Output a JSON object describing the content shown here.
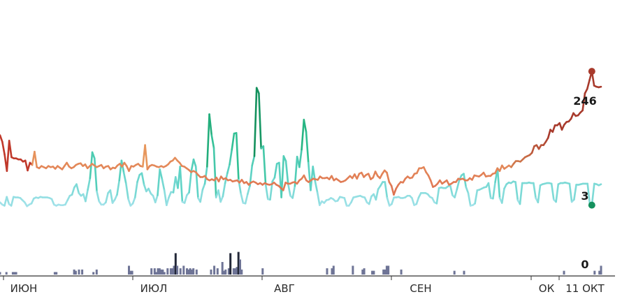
{
  "chart_data": {
    "type": "line",
    "x_tick_labels": [
      "ИЮН",
      "ИЮЛ",
      "АВГ",
      "СЕН",
      "ОК",
      "11 ОКТ"
    ],
    "y_main_range": [
      0,
      340
    ],
    "y_bar_range": [
      0,
      30
    ],
    "series": [
      {
        "colors": [
          "#a6e3ec",
          "#5fd3c6",
          "#2bbd8c",
          "#14915d"
        ],
        "values": [
          8,
          4,
          2,
          18,
          5,
          2,
          18,
          17,
          17,
          16,
          12,
          8,
          1,
          4,
          6,
          15,
          17,
          16,
          18,
          17,
          17,
          17,
          16,
          14,
          4,
          2,
          4,
          3,
          3,
          4,
          12,
          20,
          22,
          35,
          41,
          25,
          20,
          23,
          10,
          31,
          52,
          99,
          88,
          28,
          10,
          4,
          4,
          8,
          25,
          30,
          7,
          13,
          22,
          48,
          84,
          62,
          42,
          14,
          2,
          6,
          17,
          45,
          58,
          61,
          40,
          28,
          33,
          24,
          20,
          8,
          21,
          68,
          50,
          30,
          3,
          17,
          27,
          26,
          54,
          34,
          73,
          9,
          7,
          21,
          26,
          65,
          86,
          73,
          16,
          9,
          31,
          42,
          73,
          168,
          130,
          107,
          17,
          30,
          9,
          19,
          43,
          61,
          77,
          104,
          133,
          134,
          49,
          24,
          7,
          6,
          23,
          38,
          75,
          92,
          216,
          206,
          106,
          110,
          41,
          14,
          13,
          46,
          53,
          78,
          80,
          17,
          92,
          83,
          41,
          20,
          16,
          38,
          91,
          72,
          104,
          158,
          136,
          80,
          30,
          73,
          46,
          26,
          3,
          10,
          7,
          12,
          13,
          16,
          14,
          10,
          11,
          18,
          17,
          16,
          2,
          2,
          8,
          17,
          18,
          19,
          20,
          18,
          17,
          8,
          5,
          19,
          23,
          13,
          32,
          38,
          45,
          45,
          16,
          2,
          5,
          17,
          17,
          18,
          16,
          16,
          17,
          20,
          20,
          16,
          3,
          5,
          17,
          25,
          25,
          25,
          23,
          18,
          16,
          8,
          6,
          34,
          35,
          34,
          34,
          37,
          39,
          21,
          17,
          32,
          48,
          57,
          60,
          36,
          25,
          2,
          3,
          6,
          30,
          31,
          33,
          35,
          36,
          43,
          16,
          15,
          45,
          70,
          16,
          7,
          33,
          41,
          44,
          43,
          46,
          45,
          12,
          5,
          43,
          43,
          43,
          44,
          43,
          43,
          16,
          8,
          39,
          41,
          42,
          43,
          43,
          42,
          13,
          9,
          41,
          43,
          43,
          44,
          43,
          42,
          9,
          13,
          40,
          40,
          41,
          42,
          42,
          42,
          5,
          6,
          42,
          41,
          39,
          41
        ]
      },
      {
        "colors": [
          "#c0392b",
          "#e07a55",
          "#e89d5f",
          "#a83a2c"
        ],
        "values": [
          130,
          118,
          95,
          65,
          120,
          90,
          88,
          88,
          86,
          86,
          82,
          84,
          66,
          80,
          76,
          100,
          72,
          70,
          74,
          72,
          70,
          74,
          72,
          73,
          69,
          74,
          71,
          68,
          74,
          80,
          73,
          70,
          72,
          76,
          78,
          79,
          74,
          77,
          70,
          74,
          78,
          75,
          72,
          74,
          76,
          70,
          73,
          74,
          68,
          71,
          70,
          75,
          78,
          73,
          80,
          74,
          65,
          74,
          73,
          76,
          78,
          74,
          73,
          112,
          68,
          74,
          76,
          75,
          73,
          72,
          74,
          72,
          74,
          77,
          82,
          84,
          89,
          84,
          80,
          74,
          73,
          70,
          67,
          63,
          65,
          63,
          58,
          54,
          54,
          56,
          50,
          48,
          50,
          48,
          53,
          46,
          55,
          50,
          52,
          48,
          49,
          46,
          47,
          48,
          44,
          49,
          43,
          45,
          40,
          44,
          46,
          44,
          41,
          43,
          40,
          43,
          41,
          40,
          41,
          44,
          40,
          38,
          34,
          30,
          44,
          42,
          42,
          44,
          45,
          42,
          48,
          51,
          57,
          48,
          45,
          48,
          51,
          50,
          49,
          55,
          52,
          52,
          53,
          50,
          56,
          48,
          51,
          48,
          45,
          46,
          48,
          52,
          56,
          52,
          59,
          51,
          60,
          62,
          54,
          58,
          60,
          50,
          53,
          64,
          56,
          52,
          60,
          66,
          62,
          45,
          38,
          22,
          33,
          40,
          45,
          44,
          51,
          55,
          52,
          53,
          60,
          61,
          70,
          70,
          72,
          63,
          57,
          48,
          36,
          38,
          42,
          48,
          42,
          45,
          48,
          40,
          42,
          45,
          45,
          51,
          50,
          51,
          48,
          48,
          52,
          49,
          57,
          56,
          55,
          58,
          62,
          55,
          56,
          56,
          60,
          61,
          70,
          65,
          75,
          69,
          72,
          75,
          72,
          78,
          83,
          83,
          82,
          86,
          90,
          92,
          94,
          98,
          110,
          112,
          105,
          112,
          112,
          118,
          125,
          140,
          136,
          148,
          148,
          152,
          140,
          149,
          154,
          155,
          160,
          170,
          165,
          166,
          171,
          175,
          206,
          214,
          230,
          246,
          220,
          218,
          217,
          218
        ]
      }
    ],
    "bars": {
      "values": [
        2,
        0,
        0,
        0,
        2,
        0,
        0,
        0,
        2,
        2,
        2,
        0,
        0,
        0,
        0,
        0,
        0,
        0,
        0,
        0,
        0,
        0,
        0,
        0,
        0,
        0,
        0,
        0,
        0,
        0,
        0,
        0,
        0,
        0,
        2,
        2,
        0,
        0,
        0,
        0,
        0,
        0,
        0,
        0,
        0,
        0,
        4,
        3,
        0,
        4,
        0,
        4,
        0,
        0,
        0,
        0,
        0,
        0,
        2,
        0,
        4,
        0,
        0,
        0,
        0,
        0,
        0,
        0,
        0,
        0,
        0,
        0,
        0,
        0,
        0,
        0,
        0,
        0,
        0,
        0,
        7,
        3,
        3,
        0,
        0,
        0,
        0,
        0,
        0,
        0,
        0,
        0,
        0,
        0,
        5,
        0,
        5,
        2,
        5,
        5,
        4,
        4,
        2,
        0,
        5,
        0,
        5,
        5,
        7,
        17,
        7,
        0,
        5,
        0,
        7,
        0,
        5,
        4,
        5,
        4,
        5,
        0,
        4,
        0,
        0,
        0,
        0,
        0,
        0,
        0,
        0,
        4,
        0,
        7,
        0,
        5,
        0,
        0,
        10,
        3,
        4,
        0,
        5,
        17,
        0,
        5,
        5,
        6,
        18,
        12,
        4,
        0,
        0,
        0,
        0,
        0,
        0,
        0,
        0,
        0,
        0,
        0,
        0,
        5,
        0,
        0,
        0,
        0,
        0,
        0,
        0,
        0,
        0,
        0,
        0,
        0,
        0,
        0,
        0,
        0,
        0,
        0,
        0,
        0,
        0,
        0,
        0,
        0,
        0,
        0,
        0,
        0,
        0,
        0,
        0,
        0,
        0,
        0,
        0,
        0,
        0,
        0,
        0,
        5,
        0,
        0,
        5,
        7,
        0,
        0,
        0,
        0,
        0,
        0,
        0,
        0,
        0,
        0,
        0,
        7,
        0,
        0,
        0,
        0,
        0,
        4,
        5,
        0,
        0,
        0,
        0,
        3,
        3,
        0,
        0,
        0,
        0,
        0,
        4,
        4,
        7,
        7,
        0,
        0,
        0,
        0,
        0,
        0,
        0,
        4,
        0,
        0,
        0,
        0,
        0,
        0,
        0,
        0,
        0,
        0,
        0,
        0,
        0,
        0,
        0,
        0,
        0,
        0,
        0,
        0,
        0,
        0,
        0,
        0,
        0,
        0,
        0,
        0,
        0,
        0,
        0,
        0,
        3,
        0,
        0,
        0,
        0,
        0,
        3,
        0,
        0,
        0,
        0,
        0,
        0,
        0,
        0,
        0,
        0,
        0,
        0,
        0,
        0,
        0,
        0,
        0,
        0,
        0,
        0,
        0,
        0,
        0,
        0,
        0,
        0,
        0,
        0,
        0,
        0,
        0,
        0,
        0,
        0,
        0,
        0,
        0,
        0,
        0,
        0,
        0,
        0,
        0,
        0,
        0,
        0,
        0,
        0,
        0,
        0,
        0,
        0,
        0,
        0,
        0,
        0,
        0,
        0,
        0,
        0,
        0,
        3,
        0,
        0,
        0,
        0,
        0,
        0,
        0,
        0,
        0,
        0,
        0,
        0,
        0,
        0,
        0,
        0,
        0,
        0,
        3,
        0,
        0,
        3,
        7
      ]
    },
    "end_labels": {
      "line_high": "246",
      "line_low": "3",
      "bars": "0"
    },
    "marker_colors": {
      "line_high": "#a83a2c",
      "line_low": "#14915d"
    },
    "bar_colors": {
      "light": "#6e7496",
      "dark": "#232838"
    },
    "axis_color": "#333333",
    "grid": false,
    "legend": "none"
  }
}
